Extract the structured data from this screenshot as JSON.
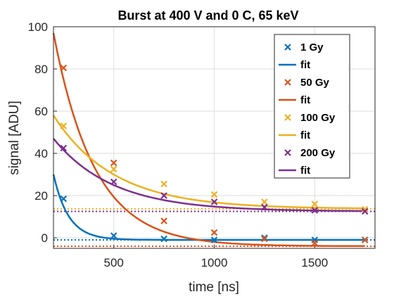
{
  "chart_data": {
    "type": "scatter",
    "title": "Burst at 400 V and 0 C, 65 keV",
    "xlabel": "time [ns]",
    "ylabel": "signal [ADU]",
    "xlim": [
      200,
      1800
    ],
    "ylim": [
      -5,
      100
    ],
    "xticks": [
      500,
      1000,
      1500
    ],
    "yticks": [
      0,
      20,
      40,
      60,
      80,
      100
    ],
    "grid": true,
    "legend_position": "top-right",
    "series": [
      {
        "name": "1 Gy",
        "fit_name": "fit",
        "color": "#0072BD",
        "x": [
          250,
          500,
          750,
          1000,
          1250,
          1500,
          1750
        ],
        "y": [
          18.5,
          1.0,
          -0.5,
          -1.0,
          0.0,
          -1.0,
          -1.0
        ],
        "fit": {
          "baseline": -1.0,
          "amplitude": 31.0,
          "tau": 75
        },
        "baseline": -1.0
      },
      {
        "name": "50 Gy",
        "fit_name": "fit",
        "color": "#D95319",
        "x": [
          250,
          500,
          750,
          1000,
          1250,
          1500,
          1750
        ],
        "y": [
          80.5,
          35.5,
          8.0,
          2.5,
          -0.5,
          -2.5,
          -1.0
        ],
        "fit": {
          "baseline": -4.0,
          "amplitude": 101.0,
          "tau": 205
        },
        "baseline": -4.0
      },
      {
        "name": "100 Gy",
        "fit_name": "fit",
        "color": "#EDB120",
        "x": [
          250,
          500,
          750,
          1000,
          1250,
          1500,
          1750
        ],
        "y": [
          53.0,
          32.5,
          25.5,
          20.5,
          17.0,
          16.0,
          13.5
        ],
        "fit": {
          "baseline": 13.7,
          "amplitude": 44.3,
          "tau": 300
        },
        "baseline": 13.7
      },
      {
        "name": "200 Gy",
        "fit_name": "fit",
        "color": "#7E2F8E",
        "x": [
          250,
          500,
          750,
          1000,
          1250,
          1500,
          1750
        ],
        "y": [
          42.5,
          26.5,
          20.0,
          17.0,
          14.5,
          13.0,
          12.5
        ],
        "fit": {
          "baseline": 12.5,
          "amplitude": 34.5,
          "tau": 295
        },
        "baseline": 12.5
      }
    ]
  }
}
